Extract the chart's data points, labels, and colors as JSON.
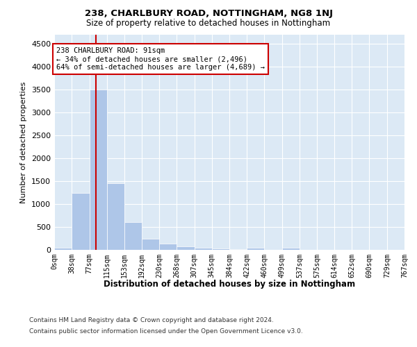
{
  "title": "238, CHARLBURY ROAD, NOTTINGHAM, NG8 1NJ",
  "subtitle": "Size of property relative to detached houses in Nottingham",
  "xlabel": "Distribution of detached houses by size in Nottingham",
  "ylabel": "Number of detached properties",
  "bin_edges": [
    0,
    38,
    77,
    115,
    153,
    192,
    230,
    268,
    307,
    345,
    384,
    422,
    460,
    499,
    537,
    575,
    614,
    652,
    690,
    729,
    767
  ],
  "bar_heights": [
    50,
    1250,
    3500,
    1450,
    600,
    250,
    130,
    80,
    50,
    30,
    20,
    50,
    5,
    50,
    0,
    0,
    0,
    0,
    0,
    0
  ],
  "bar_color": "#aec6e8",
  "bar_edge_color": "#ffffff",
  "vline_x": 91,
  "vline_color": "#cc0000",
  "annotation_text": "238 CHARLBURY ROAD: 91sqm\n← 34% of detached houses are smaller (2,496)\n64% of semi-detached houses are larger (4,689) →",
  "annotation_box_color": "#ffffff",
  "annotation_box_edge": "#cc0000",
  "ylim": [
    0,
    4700
  ],
  "yticks": [
    0,
    500,
    1000,
    1500,
    2000,
    2500,
    3000,
    3500,
    4000,
    4500
  ],
  "background_color": "#dce9f5",
  "footer_line1": "Contains HM Land Registry data © Crown copyright and database right 2024.",
  "footer_line2": "Contains public sector information licensed under the Open Government Licence v3.0."
}
